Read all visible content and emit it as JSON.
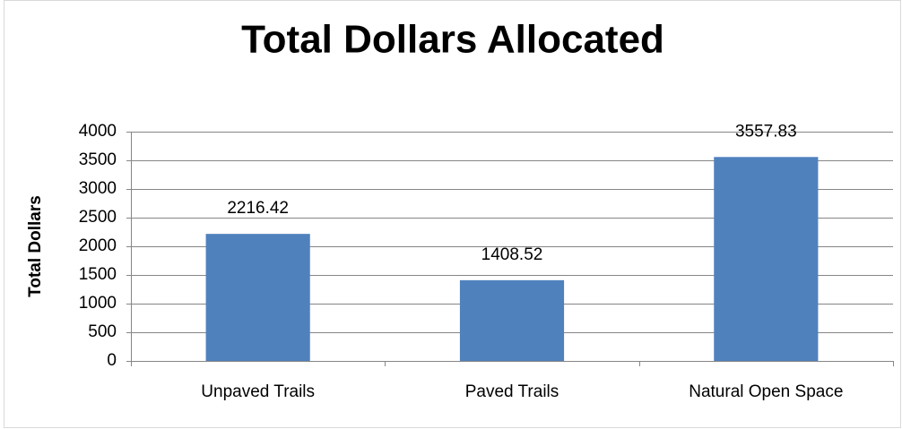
{
  "chart_data": {
    "type": "bar",
    "title": "Total Dollars Allocated",
    "y_label": "Total Dollars",
    "categories": [
      "Unpaved Trails",
      "Paved Trails",
      "Natural Open Space"
    ],
    "values": [
      2216.42,
      1408.52,
      3557.83
    ],
    "color": "#4f81bd",
    "ylim": [
      0,
      4000
    ],
    "yticks": [
      0,
      500,
      1000,
      1500,
      2000,
      2500,
      3000,
      3500,
      4000
    ],
    "grid": true
  }
}
